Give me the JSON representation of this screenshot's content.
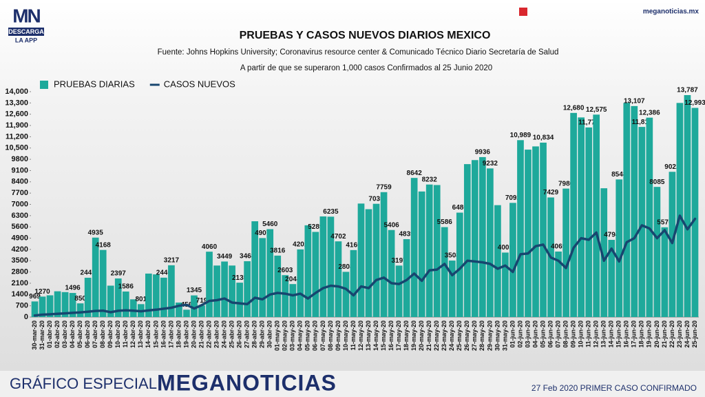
{
  "header": {
    "logo": "MN",
    "logo_cta": "DESCARGA",
    "logo_sub": "LA APP",
    "site": "meganoticias.mx"
  },
  "footer": {
    "left": "GRÁFICO ESPECIAL",
    "brand": "MEGANOTICIAS",
    "right": "27 Feb 2020 PRIMER CASO CONFIRMADO"
  },
  "chart_data": {
    "type": "bar",
    "title": "PRUEBAS Y CASOS NUEVOS DIARIOS MEXICO",
    "subtitle": "Fuente: Johns Hopkins University; Coronavirus resource center & Comunicado Técnico Diario Secretaría de Salud",
    "note": "A partir de que se superaron 1,000 casos Confirmados al 25 Junio 2020",
    "legend": "top-left",
    "categories": [
      "30-mar-20",
      "31-mar-20",
      "01-abr-20",
      "02-abr-20",
      "03-abr-20",
      "04-abr-20",
      "05-abr-20",
      "06-abr-20",
      "07-abr-20",
      "08-abr-20",
      "09-abr-20",
      "10-abr-20",
      "11-abr-20",
      "12-abr-20",
      "13-abr-20",
      "14-abr-20",
      "15-abr-20",
      "16-abr-20",
      "17-abr-20",
      "18-abr-20",
      "19-abr-20",
      "20-abr-20",
      "21-abr-20",
      "22-abr-20",
      "23-abr-20",
      "24-abr-20",
      "25-abr-20",
      "26-abr-20",
      "27-abr-20",
      "28-abr-20",
      "29-abr-20",
      "30-abr-20",
      "01-may-20",
      "02-may-20",
      "03-may-20",
      "04-may-20",
      "05-may-20",
      "06-may-20",
      "07-may-20",
      "08-may-20",
      "09-may-20",
      "10-may-20",
      "11-may-20",
      "12-may-20",
      "13-may-20",
      "14-may-20",
      "15-may-20",
      "16-may-20",
      "17-may-20",
      "18-may-20",
      "19-may-20",
      "20-may-20",
      "21-may-20",
      "22-may-20",
      "23-may-20",
      "24-may-20",
      "25-may-20",
      "26-may-20",
      "27-may-20",
      "28-may-20",
      "29-may-20",
      "30-may-20",
      "31-may-20",
      "01-jun-20",
      "02-jun-20",
      "03-jun-20",
      "04-jun-20",
      "05-jun-20",
      "06-jun-20",
      "07-jun-20",
      "08-jun-20",
      "09-jun-20",
      "10-jun-20",
      "11-jun-20",
      "12-jun-20",
      "13-jun-20",
      "14-jun-20",
      "15-jun-20",
      "16-jun-20",
      "17-jun-20",
      "18-jun-20",
      "19-jun-20",
      "20-jun-20",
      "21-jun-20",
      "22-jun-20",
      "23-jun-20",
      "24-jun-20",
      "25-jun-20"
    ],
    "series": [
      {
        "name": "PRUEBAS DIARIAS",
        "color": "#1ea99b",
        "values": [
          969,
          1270,
          1350,
          1600,
          1550,
          1496,
          850,
          2441,
          4935,
          4168,
          1950,
          2397,
          1586,
          1100,
          801,
          2700,
          2650,
          2446,
          3217,
          900,
          456,
          1345,
          719,
          4060,
          3200,
          3449,
          3200,
          2135,
          3468,
          5950,
          4907,
          5460,
          3816,
          2603,
          2048,
          4202,
          5700,
          5289,
          6250,
          6235,
          4702,
          2808,
          4160,
          7050,
          6700,
          7035,
          7759,
          5406,
          3197,
          4839,
          8642,
          7800,
          8232,
          8200,
          5586,
          3508,
          6486,
          9500,
          9750,
          9936,
          9232,
          6950,
          4005,
          7092,
          10989,
          10400,
          10600,
          10834,
          7429,
          4069,
          7980,
          12680,
          12400,
          11777,
          12575,
          8000,
          4794,
          8548,
          13300,
          13107,
          11811,
          12386,
          8085,
          5576,
          9022,
          13300,
          13787,
          12993
        ],
        "value_labels": [
          "969",
          "1270",
          null,
          null,
          null,
          "1496",
          "850",
          "2441",
          "4935",
          "4168",
          null,
          "2397",
          "1586",
          null,
          "801",
          null,
          null,
          "2446",
          "3217",
          null,
          "456",
          "1345",
          "719",
          "4060",
          null,
          "3449",
          null,
          "2135",
          "3468",
          null,
          "4907",
          "5460",
          "3816",
          "2603",
          "2048",
          "4202",
          null,
          "5289",
          null,
          "6235",
          "4702",
          "2808",
          "4160",
          null,
          null,
          "7035",
          "7759",
          "5406",
          "3197",
          "4839",
          "8642",
          null,
          "8232",
          null,
          "5586",
          "3508",
          "6486",
          null,
          null,
          "9936",
          "9232",
          null,
          "4005",
          "7092",
          "10,989",
          null,
          null,
          "10,834",
          "7429",
          "4069",
          "7980",
          "12,680",
          null,
          "11,777",
          "12,575",
          null,
          "4794",
          "8548",
          null,
          "13,107",
          "11,811",
          "12,386",
          "8085",
          "5576",
          "9022",
          null,
          "13,787",
          "12,993"
        ]
      },
      {
        "name": "CASOS NUEVOS",
        "color": "#17466f",
        "type": "line",
        "values": [
          100,
          150,
          170,
          200,
          230,
          260,
          290,
          330,
          380,
          400,
          300,
          390,
          420,
          400,
          360,
          410,
          460,
          520,
          580,
          700,
          760,
          530,
          740,
          1000,
          1050,
          1150,
          900,
          850,
          800,
          1200,
          1100,
          1400,
          1500,
          1450,
          1350,
          1450,
          1150,
          1500,
          1800,
          1950,
          1900,
          1750,
          1350,
          1900,
          1800,
          2300,
          2450,
          2100,
          2050,
          2300,
          2700,
          2250,
          2900,
          2950,
          3300,
          2600,
          3000,
          3500,
          3450,
          3400,
          3300,
          3000,
          3200,
          2800,
          3900,
          3950,
          4400,
          4500,
          3700,
          3500,
          3050,
          4300,
          4900,
          4800,
          5250,
          3500,
          4250,
          3450,
          4650,
          4900,
          5700,
          5500,
          4900,
          5400,
          4600,
          6300,
          5450,
          6100
        ]
      }
    ],
    "ylim": [
      0,
      14000
    ],
    "yticks": [
      0,
      700,
      1400,
      2100,
      2800,
      3500,
      4200,
      4900,
      5600,
      6300,
      7000,
      7700,
      8400,
      9100,
      9800,
      {
        "value": 10500,
        "label": "10,500"
      },
      {
        "value": 11200,
        "label": "11,200"
      },
      {
        "value": 11900,
        "label": "11,900"
      },
      {
        "value": 12600,
        "label": "12,600"
      },
      {
        "value": 13300,
        "label": "13,300"
      },
      {
        "value": 14000,
        "label": "14,000"
      }
    ],
    "grid": false
  }
}
